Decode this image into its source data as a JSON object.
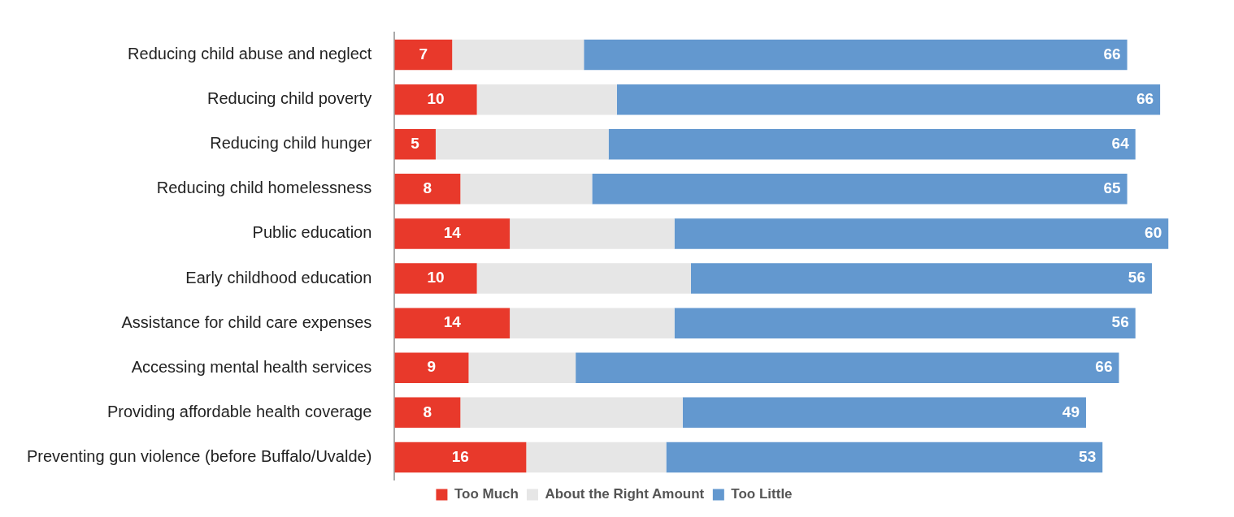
{
  "chart_data": {
    "type": "bar",
    "orientation": "horizontal",
    "stacked": true,
    "categories": [
      "Reducing child abuse and neglect",
      "Reducing child poverty",
      "Reducing child hunger",
      "Reducing child homelessness",
      "Public education",
      "Early childhood education",
      "Assistance for child care expenses",
      "Accessing mental health services",
      "Providing affordable health coverage",
      "Preventing gun violence (before Buffalo/Uvalde)"
    ],
    "series": [
      {
        "name": "Too Much",
        "color": "#e8392b",
        "values": [
          7,
          10,
          5,
          8,
          14,
          10,
          14,
          9,
          8,
          16
        ],
        "value_labels": [
          "7",
          "10",
          "5",
          "8",
          "14",
          "10",
          "14",
          "9",
          "8",
          "16"
        ]
      },
      {
        "name": "About the Right Amount",
        "color": "#e6e6e6",
        "values": [
          16,
          17,
          21,
          16,
          20,
          26,
          20,
          13,
          27,
          17
        ]
      },
      {
        "name": "Too Little",
        "color": "#6398cf",
        "values": [
          66,
          66,
          64,
          65,
          60,
          56,
          56,
          66,
          49,
          53
        ],
        "value_labels": [
          "66",
          "66",
          "64",
          "65",
          "60",
          "56",
          "56",
          "66",
          "49",
          "53"
        ]
      }
    ],
    "legend": "bottom",
    "tick_labels": "y"
  }
}
